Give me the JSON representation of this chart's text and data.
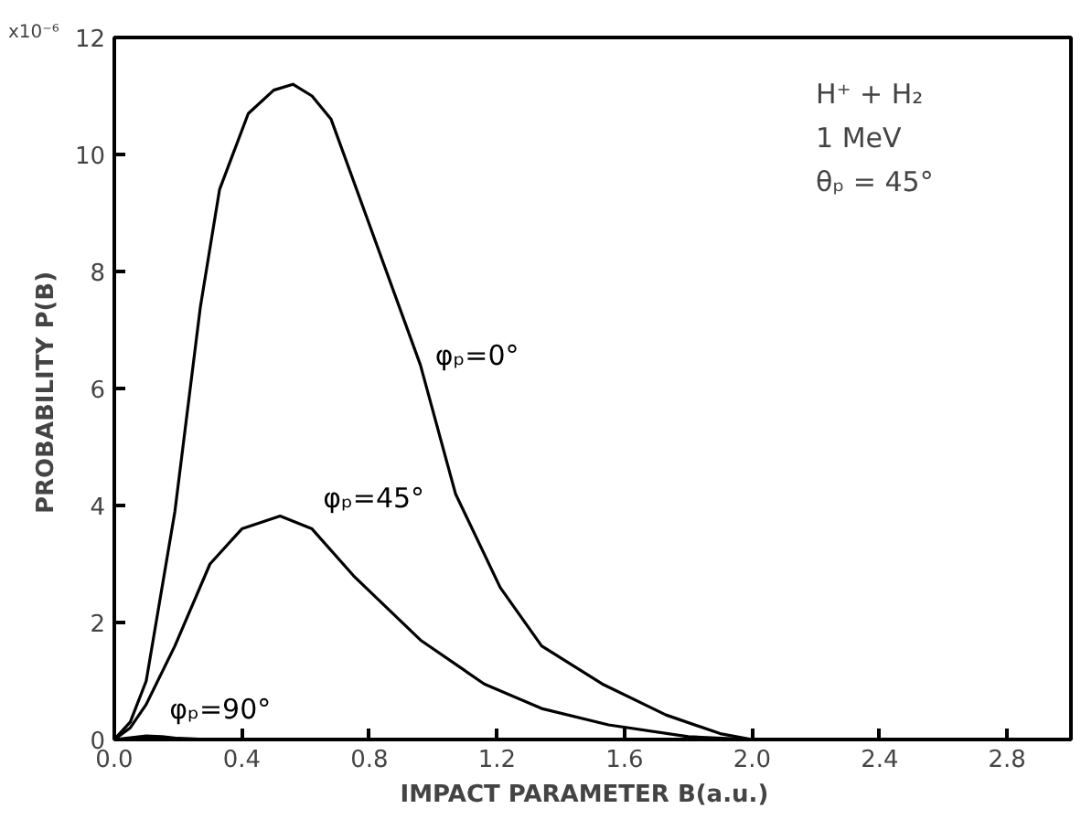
{
  "chart_data": {
    "type": "line",
    "xlabel": "IMPACT  PARAMETER  B(a.u.)",
    "ylabel": "PROBABILITY  P(B)",
    "xlim": [
      0,
      3.0
    ],
    "ylim": [
      0,
      12
    ],
    "xticks": [
      {
        "value": 0,
        "label": "0.0"
      },
      0.4,
      0.8,
      1.2,
      1.6,
      {
        "value": 2,
        "label": "2.0"
      },
      2.4,
      2.8
    ],
    "yticks": [
      0,
      2,
      4,
      6,
      8,
      10,
      12
    ],
    "grid": false,
    "marker": "none",
    "line_style": "solid",
    "annotations": [
      "x10⁻⁶",
      "H⁺ + H₂",
      "1 MeV",
      "θₚ = 45°"
    ],
    "series": [
      {
        "name": "φₚ=0°",
        "color": "#000000",
        "x": [
          0,
          0.05,
          0.1,
          0.19,
          0.27,
          0.33,
          0.42,
          0.5,
          0.56,
          0.62,
          0.68,
          0.8,
          0.96,
          1.07,
          1.21,
          1.34,
          1.53,
          1.73,
          1.9,
          2.0
        ],
        "values": [
          0,
          0.3,
          1.0,
          3.9,
          7.4,
          9.4,
          10.7,
          11.1,
          11.2,
          11.0,
          10.6,
          8.8,
          6.4,
          4.2,
          2.6,
          1.6,
          0.95,
          0.42,
          0.1,
          0
        ]
      },
      {
        "name": "φₚ=45°",
        "color": "#000000",
        "x": [
          0,
          0.05,
          0.1,
          0.19,
          0.3,
          0.4,
          0.52,
          0.62,
          0.75,
          0.96,
          1.16,
          1.34,
          1.55,
          1.8,
          2.0
        ],
        "values": [
          0,
          0.2,
          0.6,
          1.6,
          3.0,
          3.6,
          3.82,
          3.6,
          2.8,
          1.7,
          0.95,
          0.53,
          0.25,
          0.05,
          0
        ]
      },
      {
        "name": "φₚ=90°",
        "color": "#000000",
        "x": [
          0,
          0.05,
          0.1,
          0.15,
          0.2,
          0.3
        ],
        "values": [
          0,
          0.03,
          0.06,
          0.05,
          0.02,
          0
        ]
      }
    ]
  }
}
